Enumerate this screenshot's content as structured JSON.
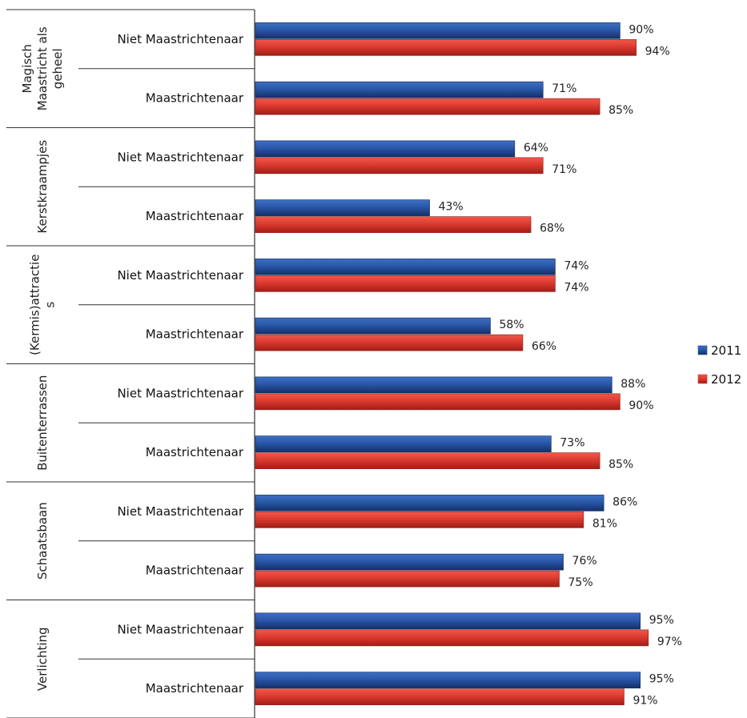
{
  "chart_data": {
    "type": "bar",
    "orientation": "horizontal",
    "value_unit": "%",
    "xlim": [
      0,
      100
    ],
    "grid": false,
    "legend_position": "right",
    "groups": [
      {
        "label": "Magisch Maastricht als geheel",
        "label_lines": [
          "Magisch",
          "Maastricht als",
          "geheel"
        ],
        "rows": [
          {
            "label": "Niet Maastrichtenaar",
            "values": [
              90,
              94
            ]
          },
          {
            "label": "Maastrichtenaar",
            "values": [
              71,
              85
            ]
          }
        ]
      },
      {
        "label": "Kerstkraampjes",
        "label_lines": [
          "Kerstkraampjes"
        ],
        "rows": [
          {
            "label": "Niet Maastrichtenaar",
            "values": [
              64,
              71
            ]
          },
          {
            "label": "Maastrichtenaar",
            "values": [
              43,
              68
            ]
          }
        ]
      },
      {
        "label": "(Kermis)attracties",
        "label_lines": [
          "(Kermis)attractie",
          "s"
        ],
        "rows": [
          {
            "label": "Niet Maastrichtenaar",
            "values": [
              74,
              74
            ]
          },
          {
            "label": "Maastrichtenaar",
            "values": [
              58,
              66
            ]
          }
        ]
      },
      {
        "label": "Buitenterrassen",
        "label_lines": [
          "Buitenterrassen"
        ],
        "rows": [
          {
            "label": "Niet Maastrichtenaar",
            "values": [
              88,
              90
            ]
          },
          {
            "label": "Maastrichtenaar",
            "values": [
              73,
              85
            ]
          }
        ]
      },
      {
        "label": "Schaatsbaan",
        "label_lines": [
          "Schaatsbaan"
        ],
        "rows": [
          {
            "label": "Niet Maastrichtenaar",
            "values": [
              86,
              81
            ]
          },
          {
            "label": "Maastrichtenaar",
            "values": [
              76,
              75
            ]
          }
        ]
      },
      {
        "label": "Verlichting",
        "label_lines": [
          "Verlichting"
        ],
        "rows": [
          {
            "label": "Niet Maastrichtenaar",
            "values": [
              95,
              97
            ]
          },
          {
            "label": "Maastrichtenaar",
            "values": [
              95,
              91
            ]
          }
        ]
      }
    ],
    "series": [
      {
        "name": "2011",
        "color": "#1f4e9a"
      },
      {
        "name": "2012",
        "color": "#d9352b"
      }
    ]
  }
}
